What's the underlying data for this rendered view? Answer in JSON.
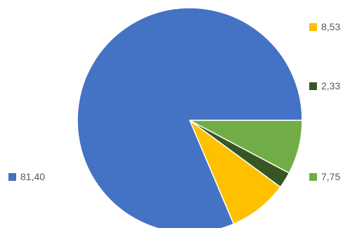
{
  "chart_data": {
    "type": "pie",
    "title": "",
    "categories": [
      "81,40",
      "8,53",
      "2,33",
      "7,75"
    ],
    "values": [
      81.4,
      8.53,
      2.33,
      7.75
    ],
    "labels": [
      "81,40",
      "8,53",
      "2,33",
      "7,75"
    ],
    "colors": [
      "#4472C4",
      "#FFC000",
      "#375623",
      "#70AD47"
    ],
    "start_angle_deg": 0,
    "direction": "counterclockwise",
    "legend": "floating labels beside slices"
  }
}
